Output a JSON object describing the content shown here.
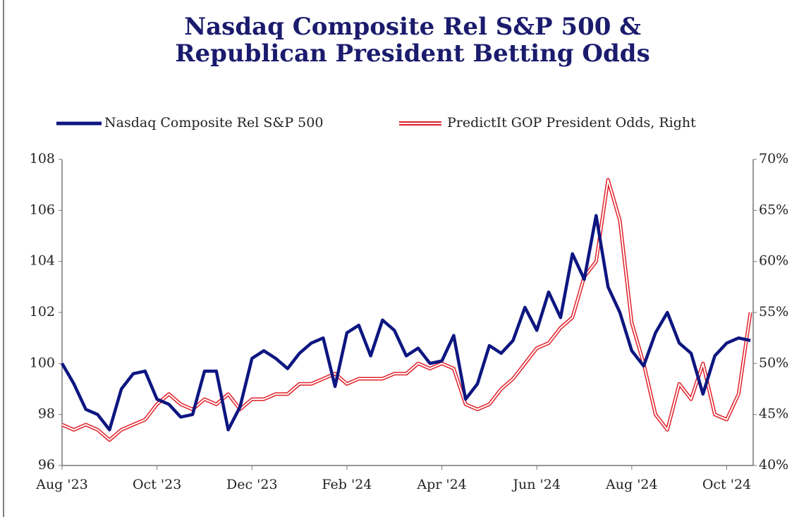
{
  "chart_data": {
    "type": "line",
    "title": [
      "Nasdaq Composite Rel S&P 500 &",
      "Republican President Betting Odds"
    ],
    "categories": [
      "Aug '23",
      null,
      null,
      null,
      null,
      null,
      null,
      null,
      "Oct '23",
      null,
      null,
      null,
      null,
      null,
      null,
      null,
      "Dec '23",
      null,
      null,
      null,
      null,
      null,
      null,
      null,
      "Feb '24",
      null,
      null,
      null,
      null,
      null,
      null,
      null,
      "Apr '24",
      null,
      null,
      null,
      null,
      null,
      null,
      null,
      "Jun '24",
      null,
      null,
      null,
      null,
      null,
      null,
      null,
      "Aug '24",
      null,
      null,
      null,
      null,
      null,
      null,
      null,
      "Oct '24",
      null,
      null
    ],
    "series": [
      {
        "name": "Nasdaq Composite Rel S&P 500",
        "color": "#0d1680",
        "axis": "y",
        "values": [
          100,
          99.2,
          98.2,
          98,
          97.4,
          99,
          99.6,
          99.7,
          98.6,
          98.4,
          97.9,
          98,
          99.7,
          99.7,
          97.4,
          98.3,
          100.2,
          100.5,
          100.2,
          99.8,
          100.4,
          100.8,
          101,
          99.1,
          101.2,
          101.5,
          100.3,
          101.7,
          101.3,
          100.3,
          100.6,
          100,
          100.1,
          101.1,
          98.6,
          99.2,
          100.7,
          100.4,
          100.9,
          102.2,
          101.3,
          102.8,
          101.8,
          104.3,
          103.3,
          105.8,
          103,
          102,
          100.5,
          99.9,
          101.2,
          102,
          100.8,
          100.4,
          98.8,
          100.3,
          100.8,
          101,
          100.9
        ]
      },
      {
        "name": "PredictIt GOP President Odds, Right",
        "color": "#e0202a",
        "axis": "y2",
        "values": [
          44,
          43.5,
          44,
          43.5,
          42.5,
          43.5,
          44,
          44.5,
          46,
          47,
          46,
          45.5,
          46.5,
          46,
          47,
          45.5,
          46.5,
          46.5,
          47,
          47,
          48,
          48,
          48.5,
          49,
          48,
          48.5,
          48.5,
          48.5,
          49,
          49,
          50,
          49.5,
          50,
          49.5,
          46,
          45.5,
          46,
          47.5,
          48.5,
          50,
          51.5,
          52,
          53.5,
          54.5,
          58.5,
          60,
          68,
          64,
          54,
          50,
          45,
          43.5,
          48,
          46.5,
          50,
          45,
          44.5,
          47,
          55
        ]
      }
    ],
    "ylim": [
      96,
      108
    ],
    "yticks": [
      96,
      98,
      100,
      102,
      104,
      106,
      108
    ],
    "y2lim": [
      40,
      70
    ],
    "y2ticks": [
      {
        "value": 40,
        "label": "40%"
      },
      {
        "value": 45,
        "label": "45%"
      },
      {
        "value": 50,
        "label": "50%"
      },
      {
        "value": 55,
        "label": "55%"
      },
      {
        "value": 60,
        "label": "60%"
      },
      {
        "value": 65,
        "label": "65%"
      },
      {
        "value": 70,
        "label": "70%"
      }
    ],
    "legend": "top",
    "grid": false
  }
}
